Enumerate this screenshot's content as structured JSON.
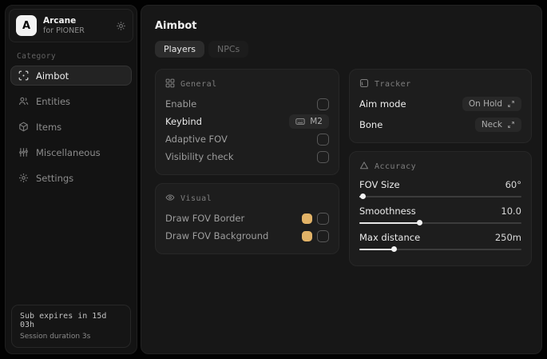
{
  "app": {
    "logo_letter": "A",
    "title": "Arcane",
    "subtitle": "for PIONER"
  },
  "sidebar": {
    "category_label": "Category",
    "items": [
      {
        "label": "Aimbot",
        "icon": "crosshair-icon",
        "active": true
      },
      {
        "label": "Entities",
        "icon": "entities-icon",
        "active": false
      },
      {
        "label": "Items",
        "icon": "package-icon",
        "active": false
      },
      {
        "label": "Miscellaneous",
        "icon": "sliders-icon",
        "active": false
      },
      {
        "label": "Settings",
        "icon": "gear-icon",
        "active": false
      }
    ],
    "footer": {
      "line1": "Sub expires in 15d 03h",
      "line2": "Session duration 3s"
    }
  },
  "main": {
    "title": "Aimbot",
    "tabs": [
      {
        "label": "Players",
        "active": true
      },
      {
        "label": "NPCs",
        "active": false
      }
    ]
  },
  "general": {
    "title": "General",
    "enable_label": "Enable",
    "keybind_label": "Keybind",
    "keybind_value": "M2",
    "adaptive_fov_label": "Adaptive FOV",
    "visibility_label": "Visibility check"
  },
  "visual": {
    "title": "Visual",
    "fov_border_label": "Draw FOV Border",
    "fov_background_label": "Draw FOV Background",
    "swatch_color": "#e2b367"
  },
  "tracker": {
    "title": "Tracker",
    "aim_mode_label": "Aim mode",
    "aim_mode_value": "On Hold",
    "bone_label": "Bone",
    "bone_value": "Neck"
  },
  "accuracy": {
    "title": "Accuracy",
    "fov_size_label": "FOV Size",
    "fov_size_value": "60°",
    "fov_size_fill": "2%",
    "smoothness_label": "Smoothness",
    "smoothness_value": "10.0",
    "smoothness_fill": "37%",
    "max_distance_label": "Max distance",
    "max_distance_value": "250m",
    "max_distance_fill": "21%"
  },
  "colors": {
    "accent_swatch": "#e2b367"
  }
}
